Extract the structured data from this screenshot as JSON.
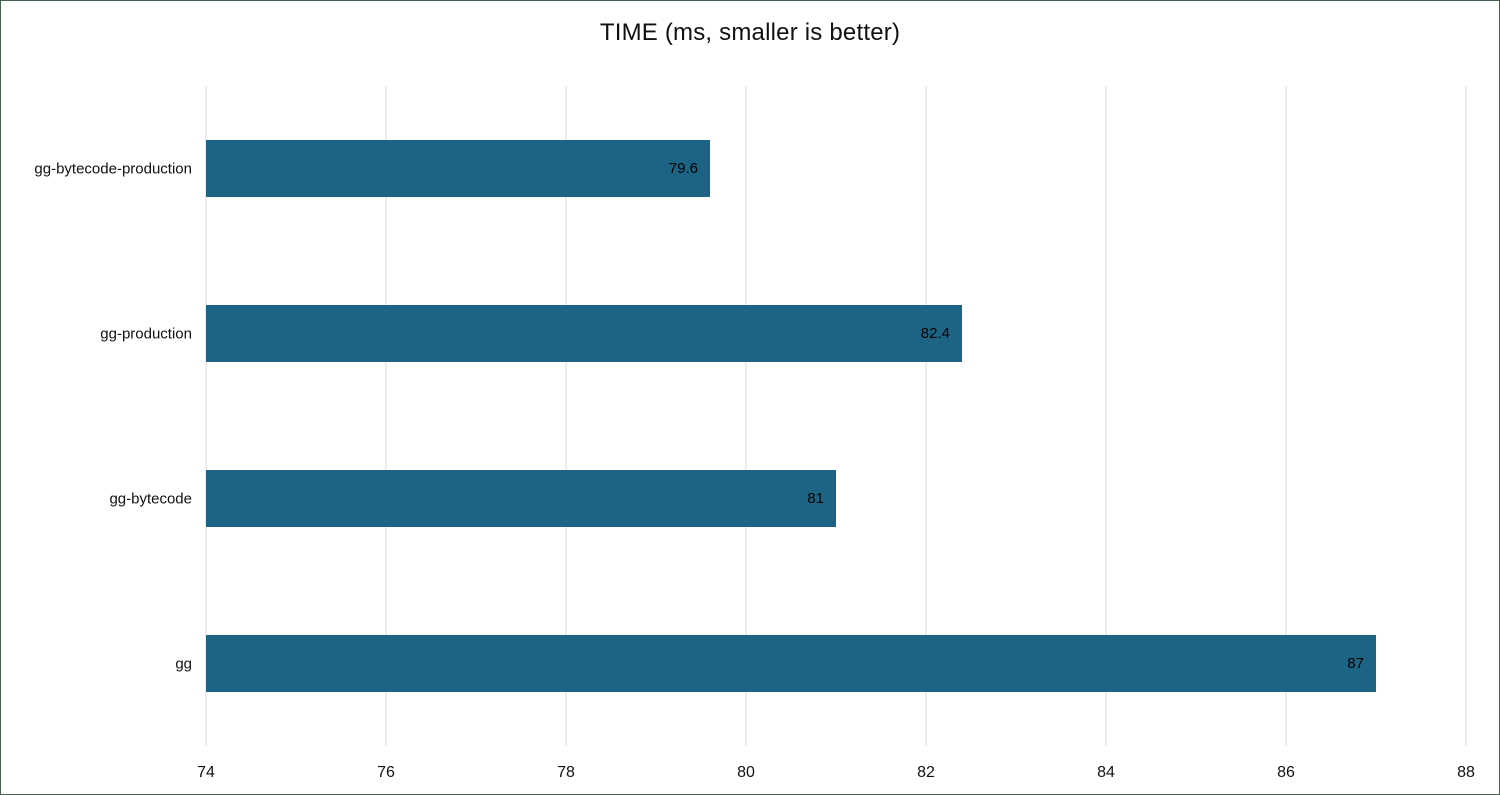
{
  "chart_data": {
    "type": "bar",
    "orientation": "horizontal",
    "title": "TIME (ms, smaller is better)",
    "categories": [
      "gg-bytecode-production",
      "gg-production",
      "gg-bytecode",
      "gg"
    ],
    "values": [
      79.6,
      82.4,
      81,
      87
    ],
    "value_labels": [
      "79.6",
      "82.4",
      "81",
      "87"
    ],
    "xlim": [
      74,
      88
    ],
    "x_ticks": [
      74,
      76,
      78,
      80,
      82,
      84,
      86,
      88
    ],
    "grid": true,
    "legend": "none",
    "xlabel": "",
    "ylabel": "",
    "bar_color": "#1d6484",
    "gridline_color": "#d9d9d9",
    "label_color": "#000000"
  }
}
